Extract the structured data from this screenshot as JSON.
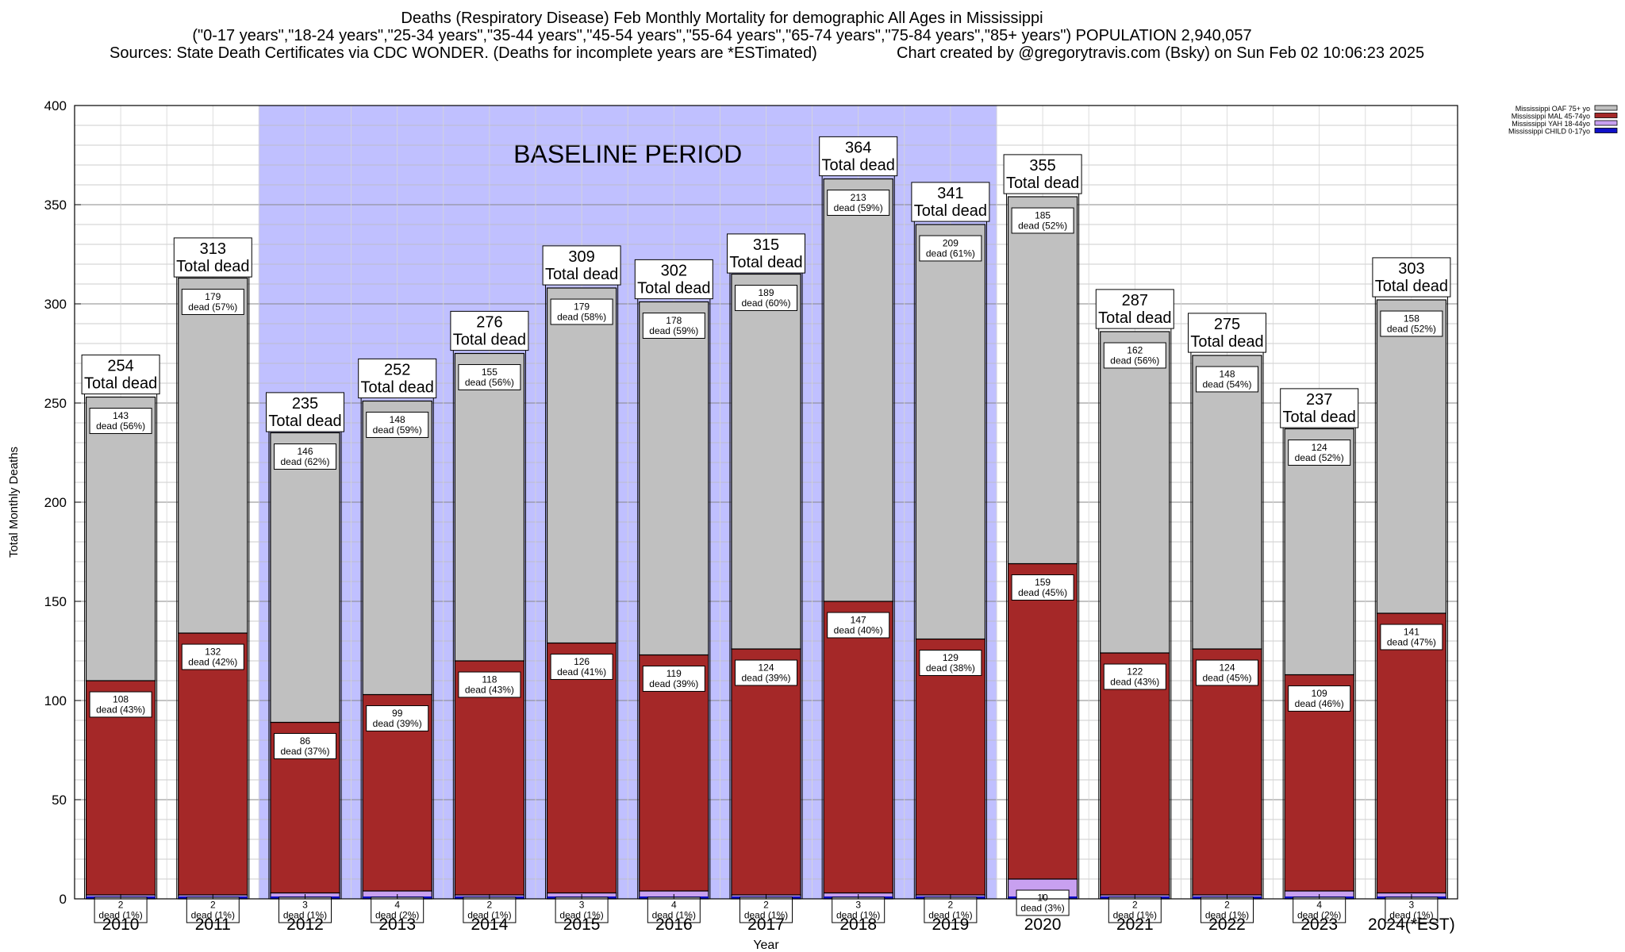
{
  "chart_data": {
    "type": "bar",
    "stacked": true,
    "title": "Deaths (Respiratory Disease) Feb Monthly Mortality for demographic All Ages in Mississippi",
    "subtitle": "(\"0-17 years\",\"18-24 years\",\"25-34 years\",\"35-44 years\",\"45-54 years\",\"55-64 years\",\"65-74 years\",\"75-84 years\",\"85+ years\") POPULATION 2,940,057",
    "sources": "Sources: State Death Certificates via CDC WONDER. (Deaths for incomplete years are *ESTimated)",
    "credit": "Chart created by @gregorytravis.com (Bsky) on Sun Feb 02 10:06:23 2025",
    "xlabel": "Year",
    "ylabel": "Total Monthly Deaths",
    "ylim": [
      0,
      400
    ],
    "yticks": [
      0,
      50,
      100,
      150,
      200,
      250,
      300,
      350,
      400
    ],
    "categories": [
      "2010",
      "2011",
      "2012",
      "2013",
      "2014",
      "2015",
      "2016",
      "2017",
      "2018",
      "2019",
      "2020",
      "2021",
      "2022",
      "2023",
      "2024(*EST)"
    ],
    "totals": [
      254,
      313,
      235,
      252,
      276,
      309,
      302,
      315,
      364,
      341,
      355,
      287,
      275,
      237,
      303
    ],
    "total_label": "Total dead",
    "dead_word": "dead",
    "series": [
      {
        "name": "Mississippi CHILD 0-17yo",
        "color": "#1010c8",
        "values": [
          0,
          0,
          0,
          0,
          0,
          0,
          0,
          0,
          0,
          0,
          0,
          0,
          0,
          0,
          0
        ],
        "pct": [],
        "show_labels": false
      },
      {
        "name": "Mississippi YAH 18-44yo",
        "color": "#c8a0f0",
        "values": [
          2,
          2,
          3,
          4,
          2,
          3,
          4,
          2,
          3,
          2,
          10,
          2,
          2,
          4,
          3
        ],
        "pct": [
          1,
          1,
          1,
          2,
          1,
          1,
          1,
          1,
          1,
          1,
          3,
          1,
          1,
          2,
          1
        ],
        "show_labels": true
      },
      {
        "name": "Mississippi MAL 45-74yo",
        "color": "#a52828",
        "values": [
          108,
          132,
          86,
          99,
          118,
          126,
          119,
          124,
          147,
          129,
          159,
          122,
          124,
          109,
          141
        ],
        "pct": [
          43,
          42,
          37,
          39,
          43,
          41,
          39,
          39,
          40,
          38,
          45,
          43,
          45,
          46,
          47
        ],
        "show_labels": true
      },
      {
        "name": "Mississippi OAF 75+ yo",
        "color": "#c0c0c0",
        "values": [
          143,
          179,
          146,
          148,
          155,
          179,
          178,
          189,
          213,
          209,
          185,
          162,
          148,
          124,
          158
        ],
        "pct": [
          56,
          57,
          62,
          59,
          56,
          58,
          59,
          60,
          59,
          61,
          52,
          56,
          54,
          52,
          52
        ],
        "show_labels": true
      }
    ],
    "legend_position": "top-right",
    "legend_order": [
      "Mississippi OAF 75+ yo",
      "Mississippi MAL 45-74yo",
      "Mississippi YAH 18-44yo",
      "Mississippi CHILD 0-17yo"
    ],
    "annotations": [
      {
        "text": "BASELINE PERIOD",
        "from": "2012",
        "to": "2019",
        "color": "#c0c0ff"
      }
    ],
    "grid": true
  }
}
